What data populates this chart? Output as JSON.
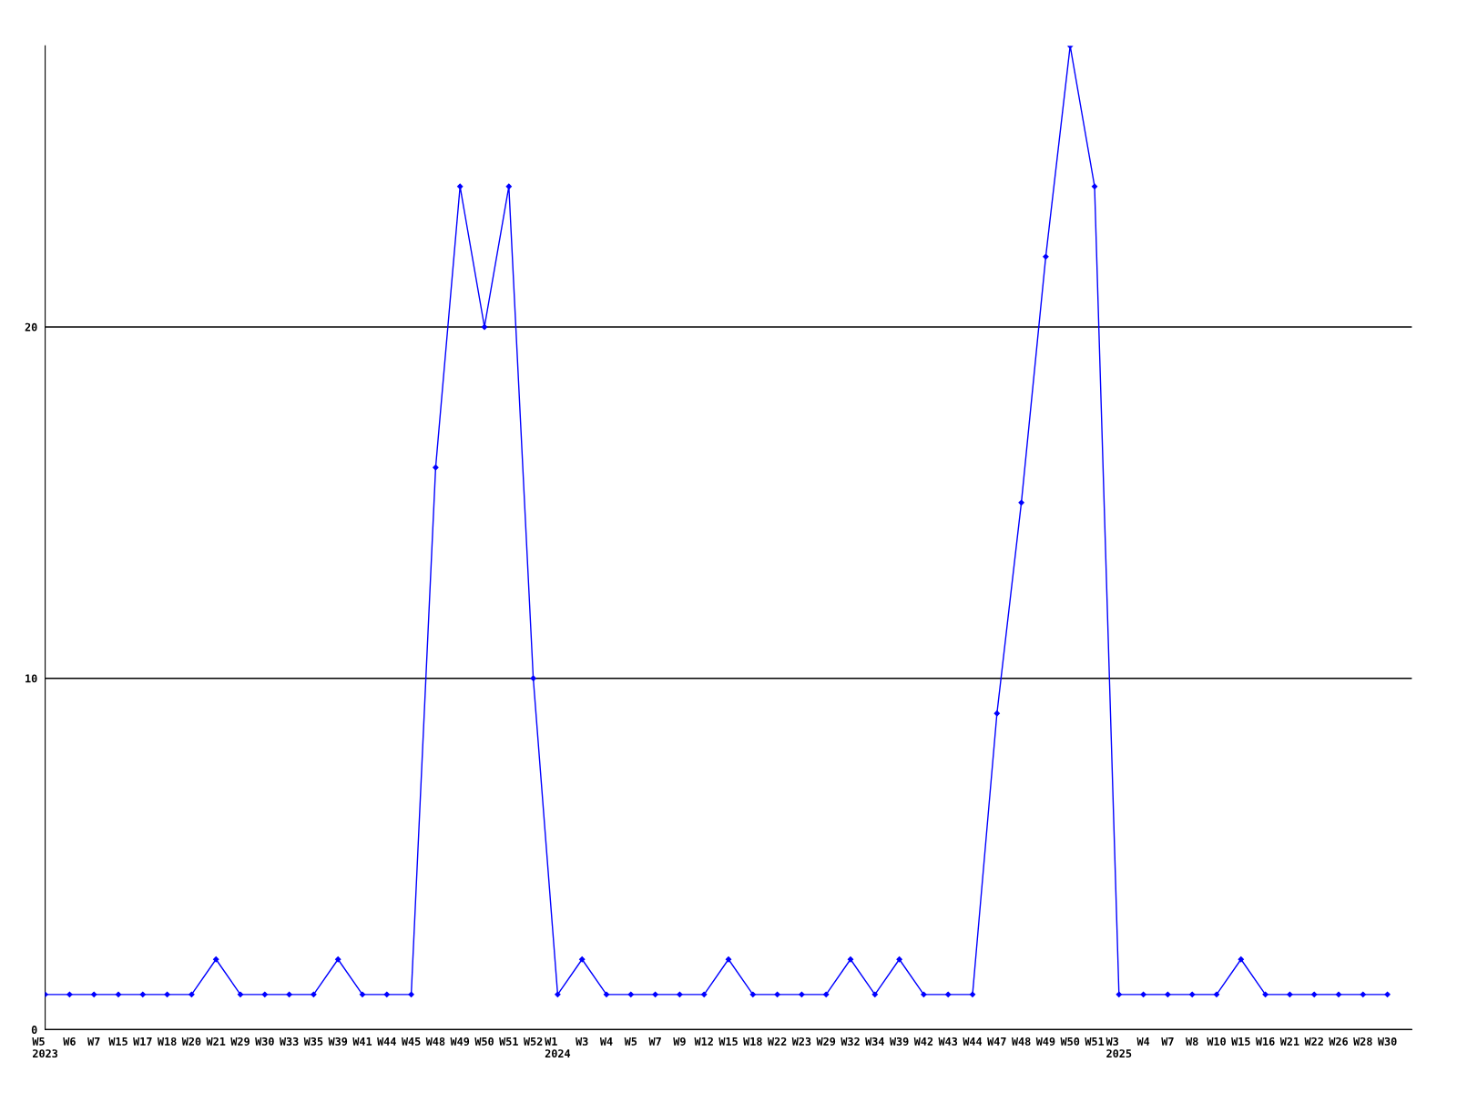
{
  "chart_data": {
    "type": "line",
    "categories": [
      "W5\n2023",
      "W6",
      "W7",
      "W15",
      "W17",
      "W18",
      "W20",
      "W21",
      "W29",
      "W30",
      "W33",
      "W35",
      "W39",
      "W41",
      "W44",
      "W45",
      "W48",
      "W49",
      "W50",
      "W51",
      "W52",
      "W1\n2024",
      "W3",
      "W4",
      "W5",
      "W7",
      "W9",
      "W12",
      "W15",
      "W18",
      "W22",
      "W23",
      "W29",
      "W32",
      "W34",
      "W39",
      "W42",
      "W43",
      "W44",
      "W47",
      "W48",
      "W49",
      "W50",
      "W51",
      "W3\n2025",
      "W4",
      "W7",
      "W8",
      "W10",
      "W15",
      "W16",
      "W21",
      "W22",
      "W26",
      "W28",
      "W30"
    ],
    "series": [
      {
        "color": "#0000ff",
        "values": [
          1,
          1,
          1,
          1,
          1,
          1,
          1,
          2,
          1,
          1,
          1,
          1,
          2,
          1,
          1,
          1,
          16,
          24,
          20,
          24,
          10,
          1,
          2,
          1,
          1,
          1,
          1,
          1,
          2,
          1,
          1,
          1,
          1,
          2,
          1,
          2,
          1,
          1,
          1,
          9,
          15,
          22,
          28,
          24,
          1,
          1,
          1,
          1,
          1,
          2,
          1,
          1,
          1,
          1,
          1,
          1
        ]
      }
    ],
    "ylim": [
      0,
      28
    ],
    "yticks": [
      0,
      10,
      20
    ],
    "grid": "y",
    "marker": "diamond",
    "line_style": "solid",
    "legend": false
  }
}
